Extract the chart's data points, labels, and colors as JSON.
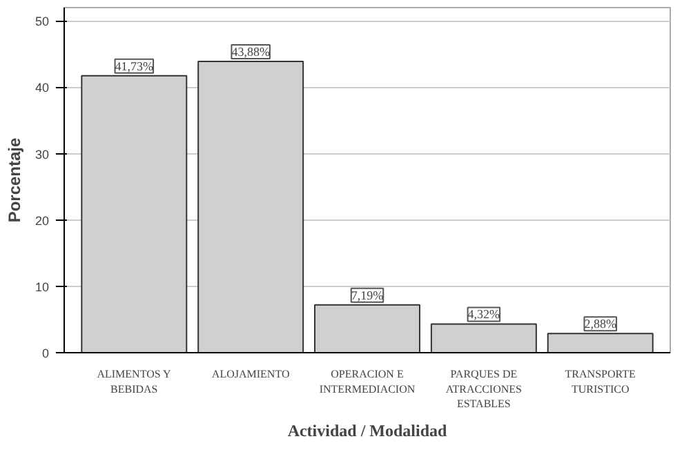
{
  "chart_data": {
    "type": "bar",
    "xlabel": "Actividad / Modalidad",
    "ylabel": "Porcentaje",
    "categories": [
      "ALIMENTOS Y\nBEBIDAS",
      "ALOJAMIENTO",
      "OPERACION E\nINTERMEDIACION",
      "PARQUES DE\nATRACCIONES\nESTABLES",
      "TRANSPORTE\nTURISTICO"
    ],
    "values": [
      41.73,
      43.88,
      7.19,
      4.32,
      2.88
    ],
    "value_labels": [
      "41,73%",
      "43,88%",
      "7,19%",
      "4,32%",
      "2,88%"
    ],
    "color": "#d0d0d0",
    "ylim": [
      0,
      52
    ],
    "yticks": [
      0,
      10,
      20,
      30,
      40,
      50
    ],
    "grid": "y"
  }
}
